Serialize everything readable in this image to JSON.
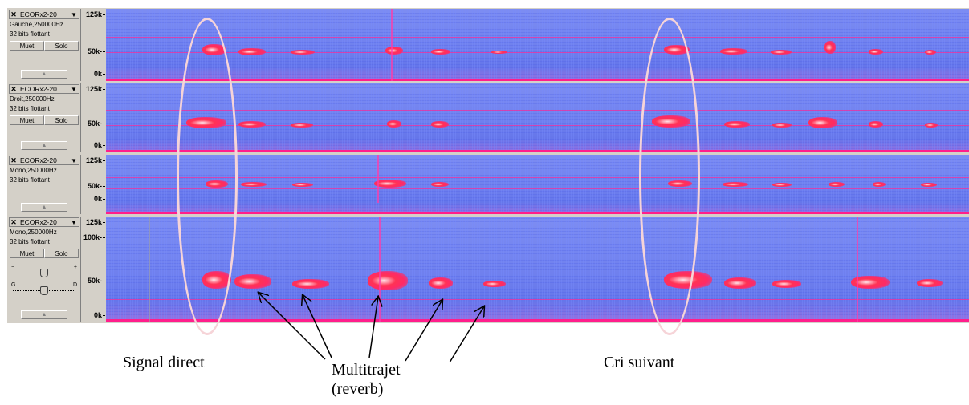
{
  "tracks": [
    {
      "close_glyph": "✕",
      "name": "ECORx2-20",
      "menu_glyph": "▼",
      "channel_rate": "Gauche,250000Hz",
      "format": "32 bits flottant",
      "mute_label": "Muet",
      "solo_label": "Solo",
      "collapse_glyph": "▲",
      "ruler": [
        "125k",
        "50k-",
        "0k"
      ]
    },
    {
      "close_glyph": "✕",
      "name": "ECORx2-20",
      "menu_glyph": "▼",
      "channel_rate": "Droit,250000Hz",
      "format": "32 bits flottant",
      "mute_label": "Muet",
      "solo_label": "Solo",
      "collapse_glyph": "▲",
      "ruler": [
        "125k",
        "50k-",
        "0k"
      ]
    },
    {
      "close_glyph": "✕",
      "name": "ECORx2-20",
      "menu_glyph": "▼",
      "channel_rate": "Mono,250000Hz",
      "format": "32 bits flottant",
      "collapse_glyph": "▲",
      "ruler": [
        "125k",
        "50k-",
        "0k"
      ]
    },
    {
      "close_glyph": "✕",
      "name": "ECORx2-20",
      "menu_glyph": "▼",
      "channel_rate": "Mono,250000Hz",
      "format": "32 bits flottant",
      "mute_label": "Muet",
      "solo_label": "Solo",
      "gain_minus": "−",
      "gain_plus": "+",
      "pan_left": "G",
      "pan_right": "D",
      "collapse_glyph": "▲",
      "ruler": [
        "125k",
        "100k-",
        "50k-",
        "0k"
      ]
    }
  ],
  "annotations": {
    "signal_direct": "Signal direct",
    "multipath_line1": "Multitrajet",
    "multipath_line2": "(reverb)",
    "next_call": "Cri suivant"
  },
  "colors": {
    "highlight_ellipse": "#f6d4d8",
    "spectrogram_background": "#7282ee",
    "signal_hot": "#ff2a55"
  }
}
